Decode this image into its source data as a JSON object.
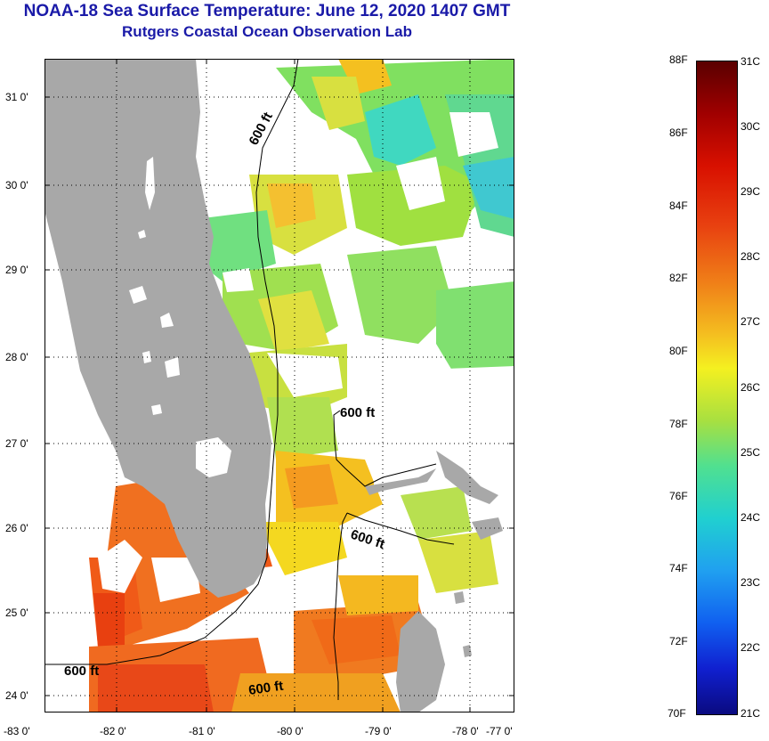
{
  "title": "NOAA-18 Sea Surface Temperature:  June 12, 2020 1407 GMT",
  "subtitle": "Rutgers Coastal Ocean Observation Lab",
  "map": {
    "lat_labels": [
      "31 0'",
      "30 0'",
      "29 0'",
      "28 0'",
      "27 0'",
      "26 0'",
      "25 0'",
      "24 0'"
    ],
    "lon_labels": [
      "-83 0'",
      "-82 0'",
      "-81 0'",
      "-80 0'",
      "-79 0'",
      "-78 0'",
      "-77 0'"
    ],
    "isobath_labels": [
      "600 ft",
      "600 ft",
      "600 ft",
      "600 ft",
      "600 ft"
    ],
    "land_color": "#a8a8a8",
    "cloud_color": "#ffffff"
  },
  "colorbar": {
    "fahrenheit_labels": [
      "88F",
      "86F",
      "84F",
      "82F",
      "80F",
      "78F",
      "76F",
      "74F",
      "72F",
      "70F"
    ],
    "celsius_labels": [
      "31C",
      "30C",
      "29C",
      "28C",
      "27C",
      "26C",
      "25C",
      "24C",
      "23C",
      "22C",
      "21C"
    ],
    "colors": [
      "#6b0000",
      "#b30000",
      "#e02000",
      "#f06010",
      "#f4a020",
      "#f4e020",
      "#a0e040",
      "#40e0a0",
      "#20c0e0",
      "#2080f0",
      "#1020d0",
      "#0a0a80"
    ]
  }
}
